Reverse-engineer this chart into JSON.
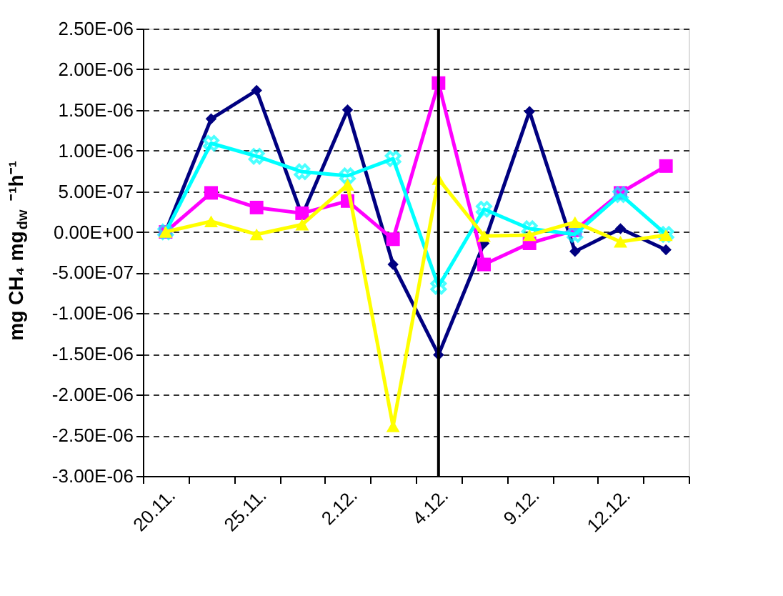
{
  "chart_data": {
    "type": "line",
    "ylabel": "mg CH₄ mg$_{dw}$ ⁻¹h⁻¹",
    "categories": [
      "20.11.",
      null,
      "25.11.",
      null,
      "2.12.",
      null,
      "4.12.",
      null,
      "9.12.",
      null,
      "12.12.",
      null
    ],
    "series": [
      {
        "color": "#000080",
        "marker": "diamond",
        "values": [
          0,
          1.39e-06,
          1.74e-06,
          2e-07,
          1.5e-06,
          -4e-07,
          -1.51e-06,
          -1.4e-07,
          1.48e-06,
          -2.4e-07,
          4e-08,
          -2.2e-07
        ]
      },
      {
        "color": "#ff00ff",
        "marker": "square",
        "values": [
          0,
          4.8e-07,
          3e-07,
          2.3e-07,
          3.8e-07,
          -9e-08,
          1.83e-06,
          -4e-07,
          -1.4e-07,
          2e-08,
          4.8e-07,
          8.1e-07
        ]
      },
      {
        "color": "#00ffff",
        "marker": "cross",
        "values": [
          0,
          1.09e-06,
          9.3e-07,
          7.4e-07,
          6.9e-07,
          9e-07,
          -6.7e-07,
          2.8e-07,
          4e-08,
          -3e-08,
          4.6e-07,
          -3e-08
        ]
      },
      {
        "color": "#ffff00",
        "marker": "triangle",
        "values": [
          0,
          1.3e-07,
          -3e-08,
          9e-08,
          5.8e-07,
          -2.39e-06,
          6.5e-07,
          -5e-08,
          -4e-08,
          1.2e-07,
          -1.2e-07,
          -4e-08
        ]
      }
    ],
    "ylim": [
      -3e-06,
      2.5e-06
    ],
    "yticks": [
      {
        "value": 2.5e-06,
        "label": "2.50E-06"
      },
      {
        "value": 2e-06,
        "label": "2.00E-06"
      },
      {
        "value": 1.5e-06,
        "label": "1.50E-06"
      },
      {
        "value": 1e-06,
        "label": "1.00E-06"
      },
      {
        "value": 5e-07,
        "label": "5.00E-07"
      },
      {
        "value": 0,
        "label": "0.00E+00"
      },
      {
        "value": -5e-07,
        "label": "-5.00E-07"
      },
      {
        "value": -1e-06,
        "label": "-1.00E-06"
      },
      {
        "value": -1.5e-06,
        "label": "-1.50E-06"
      },
      {
        "value": -2e-06,
        "label": "-2.00E-06"
      },
      {
        "value": -2.5e-06,
        "label": "-2.50E-06"
      },
      {
        "value": -3e-06,
        "label": "-3.00E-06"
      }
    ],
    "grid": "y",
    "ref_lines": [
      {
        "axis": "x",
        "value": "4.12.",
        "color": "#000000",
        "line_style": "solid"
      }
    ]
  }
}
